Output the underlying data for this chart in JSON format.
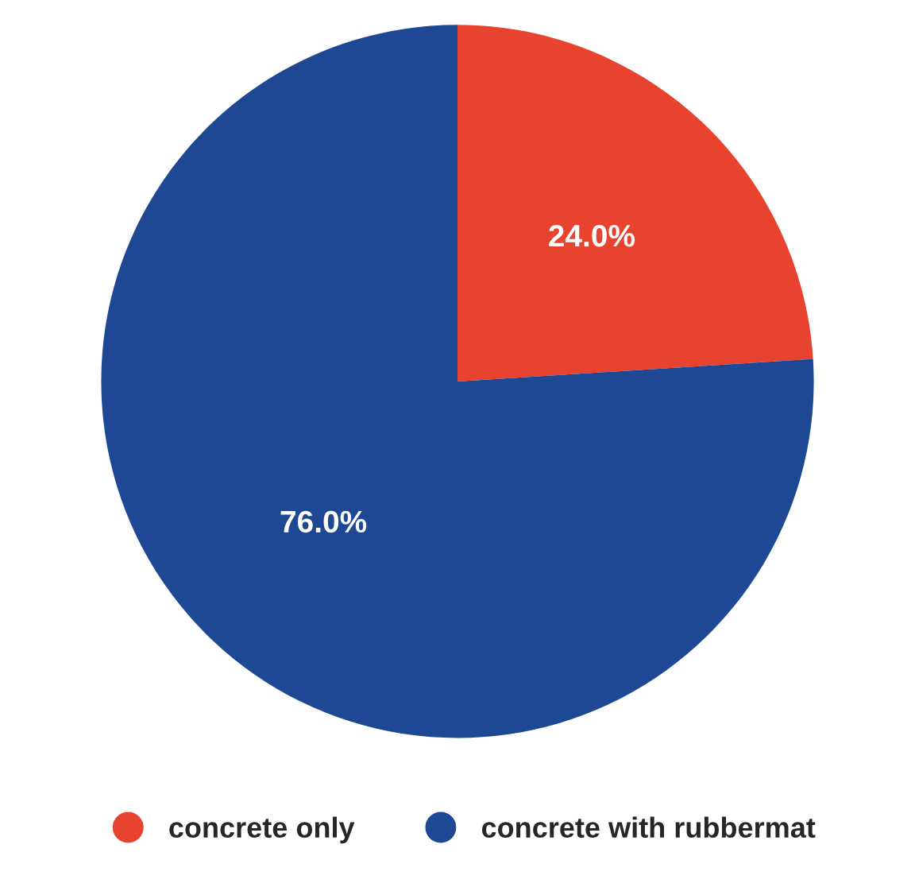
{
  "chart_data": {
    "type": "pie",
    "categories": [
      "concrete only",
      "concrete with rubbermat"
    ],
    "values": [
      24.0,
      76.0
    ],
    "colors": [
      "#e8432f",
      "#1e4894"
    ],
    "value_labels": [
      "24.0%",
      "76.0%"
    ],
    "legend": "bottom"
  }
}
